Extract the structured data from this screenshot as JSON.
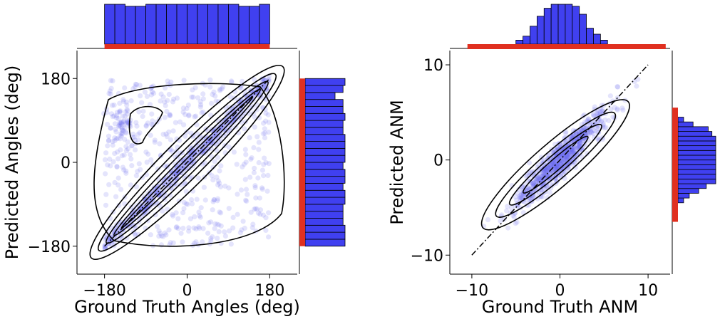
{
  "chart_data": [
    {
      "type": "scatter",
      "subtype": "joint-plot-with-kde",
      "xlabel": "Ground Truth Angles (deg)",
      "ylabel": "Predicted Angles (deg)",
      "xlim": [
        -240,
        240
      ],
      "ylim": [
        -240,
        240
      ],
      "x_ticks": [
        -180,
        0,
        180
      ],
      "y_ticks": [
        -180,
        0,
        180
      ],
      "x_tick_labels": [
        "−180",
        "0",
        "180"
      ],
      "y_tick_labels": [
        "−180",
        "0",
        "180"
      ],
      "reference_line": {
        "from": [
          -180,
          -180
        ],
        "to": [
          180,
          180
        ],
        "style": "dash-dot"
      },
      "scatter_color": "#6b6bf0",
      "marginal_x": {
        "bin_edges": [
          -180,
          -157.5,
          -135,
          -112.5,
          -90,
          -67.5,
          -45,
          -22.5,
          0,
          22.5,
          45,
          67.5,
          90,
          112.5,
          135,
          157.5,
          180
        ],
        "counts": [
          100,
          100,
          95,
          95,
          100,
          100,
          100,
          100,
          100,
          100,
          100,
          100,
          100,
          95,
          95,
          100
        ],
        "rug_range": [
          -180,
          180
        ]
      },
      "marginal_y": {
        "bin_edges": [
          -180,
          -165,
          -150,
          -135,
          -120,
          -105,
          -90,
          -75,
          -60,
          -45,
          -30,
          -15,
          0,
          15,
          30,
          45,
          60,
          75,
          90,
          105,
          120,
          135,
          150,
          165,
          180
        ],
        "counts": [
          100,
          100,
          100,
          95,
          95,
          95,
          100,
          100,
          95,
          100,
          100,
          95,
          100,
          100,
          100,
          100,
          95,
          95,
          100,
          95,
          95,
          75,
          95,
          100
        ],
        "rug_range": [
          -180,
          180
        ]
      },
      "bar_color": "#4040f0",
      "rug_color": "#e03020"
    },
    {
      "type": "scatter",
      "subtype": "joint-plot-with-kde",
      "xlabel": "Ground Truth ANM",
      "ylabel": "Predicted ANM",
      "xlim": [
        -12.5,
        12.5
      ],
      "ylim": [
        -12,
        11.5
      ],
      "x_ticks": [
        -10,
        0,
        10
      ],
      "y_ticks": [
        -10,
        0,
        10
      ],
      "x_tick_labels": [
        "−10",
        "0",
        "10"
      ],
      "y_tick_labels": [
        "−10",
        "0",
        "10"
      ],
      "reference_line": {
        "from": [
          -10,
          -10
        ],
        "to": [
          10,
          10
        ],
        "style": "dash-dot"
      },
      "scatter_color": "#6b6bf0",
      "marginal_x": {
        "bin_edges": [
          -5,
          -4.2,
          -3.4,
          -2.6,
          -1.8,
          -1.0,
          -0.2,
          0.6,
          1.4,
          2.2,
          3.0,
          3.8,
          4.6,
          5.4
        ],
        "counts": [
          10,
          20,
          45,
          70,
          90,
          100,
          100,
          100,
          95,
          75,
          40,
          25,
          10
        ],
        "rug_range": [
          -10.5,
          12
        ]
      },
      "marginal_y": {
        "bin_edges": [
          -4.5,
          -4.0,
          -3.5,
          -3.0,
          -2.5,
          -2.0,
          -1.5,
          -1.0,
          -0.5,
          0.0,
          0.5,
          1.0,
          1.5,
          2.0,
          2.5,
          3.0,
          3.5,
          4.0,
          4.5
        ],
        "counts": [
          15,
          30,
          55,
          75,
          100,
          100,
          100,
          100,
          100,
          100,
          100,
          100,
          100,
          100,
          90,
          80,
          40,
          15
        ],
        "rug_range": [
          -6.5,
          5.5
        ]
      },
      "bar_color": "#4040f0",
      "rug_color": "#e03020"
    }
  ]
}
